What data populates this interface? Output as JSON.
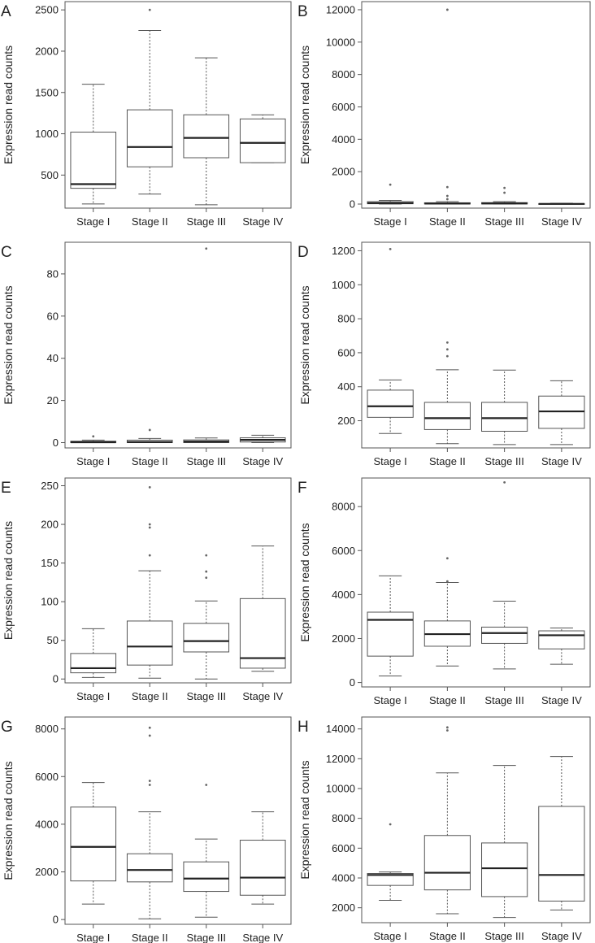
{
  "figure": {
    "panels": [
      {
        "letter": "A",
        "chart_data": {
          "type": "box",
          "categories": [
            "Stage I",
            "Stage II",
            "Stage III",
            "Stage IV"
          ],
          "ylabel": "Expression read counts",
          "yticks": [
            500,
            1000,
            1500,
            2000,
            2500
          ],
          "ylim": [
            100,
            2600
          ],
          "boxes": [
            {
              "min": 150,
              "q1": 340,
              "median": 390,
              "q3": 1020,
              "max": 1600,
              "outliers": []
            },
            {
              "min": 270,
              "q1": 600,
              "median": 840,
              "q3": 1290,
              "max": 2250,
              "outliers": [
                2500
              ]
            },
            {
              "min": 140,
              "q1": 710,
              "median": 950,
              "q3": 1230,
              "max": 1920,
              "outliers": []
            },
            {
              "min": 650,
              "q1": 650,
              "median": 890,
              "q3": 1180,
              "max": 1230,
              "outliers": []
            }
          ]
        }
      },
      {
        "letter": "B",
        "chart_data": {
          "type": "box",
          "categories": [
            "Stage I",
            "Stage II",
            "Stage III",
            "Stage IV"
          ],
          "ylabel": "Expression read counts",
          "yticks": [
            0,
            2000,
            4000,
            6000,
            8000,
            10000,
            12000
          ],
          "ylim": [
            -250,
            12500
          ],
          "boxes": [
            {
              "min": 0,
              "q1": 20,
              "median": 60,
              "q3": 150,
              "max": 230,
              "outliers": [
                1200
              ]
            },
            {
              "min": 0,
              "q1": 10,
              "median": 30,
              "q3": 80,
              "max": 150,
              "outliers": [
                300,
                500,
                1050,
                12000
              ]
            },
            {
              "min": 0,
              "q1": 10,
              "median": 40,
              "q3": 90,
              "max": 150,
              "outliers": [
                700,
                1000
              ]
            },
            {
              "min": 0,
              "q1": 5,
              "median": 10,
              "q3": 30,
              "max": 50,
              "outliers": []
            }
          ]
        }
      },
      {
        "letter": "C",
        "chart_data": {
          "type": "box",
          "categories": [
            "Stage I",
            "Stage II",
            "Stage III",
            "Stage IV"
          ],
          "ylabel": "Expression read counts",
          "yticks": [
            0,
            20,
            40,
            60,
            80
          ],
          "ylim": [
            -2.5,
            95
          ],
          "boxes": [
            {
              "min": 0,
              "q1": 0,
              "median": 0.2,
              "q3": 0.7,
              "max": 1.2,
              "outliers": [
                3
              ]
            },
            {
              "min": 0,
              "q1": 0,
              "median": 0.3,
              "q3": 1.2,
              "max": 2,
              "outliers": [
                6
              ]
            },
            {
              "min": 0,
              "q1": 0,
              "median": 0.5,
              "q3": 1.3,
              "max": 2.2,
              "outliers": [
                92
              ]
            },
            {
              "min": 0,
              "q1": 0.3,
              "median": 1.3,
              "q3": 2.3,
              "max": 3.5,
              "outliers": []
            }
          ]
        }
      },
      {
        "letter": "D",
        "chart_data": {
          "type": "box",
          "categories": [
            "Stage I",
            "Stage II",
            "Stage III",
            "Stage IV"
          ],
          "ylabel": "Expression read counts",
          "yticks": [
            200,
            400,
            600,
            800,
            1000,
            1200
          ],
          "ylim": [
            40,
            1250
          ],
          "boxes": [
            {
              "min": 125,
              "q1": 220,
              "median": 285,
              "q3": 380,
              "max": 440,
              "outliers": [
                1210
              ]
            },
            {
              "min": 65,
              "q1": 148,
              "median": 215,
              "q3": 308,
              "max": 500,
              "outliers": [
                580,
                620,
                660
              ]
            },
            {
              "min": 60,
              "q1": 138,
              "median": 215,
              "q3": 308,
              "max": 498,
              "outliers": []
            },
            {
              "min": 60,
              "q1": 155,
              "median": 255,
              "q3": 345,
              "max": 435,
              "outliers": []
            }
          ]
        }
      },
      {
        "letter": "E",
        "chart_data": {
          "type": "box",
          "categories": [
            "Stage I",
            "Stage II",
            "Stage III",
            "Stage IV"
          ],
          "ylabel": "Expression read counts",
          "yticks": [
            0,
            50,
            100,
            150,
            200,
            250
          ],
          "ylim": [
            -5,
            260
          ],
          "boxes": [
            {
              "min": 2,
              "q1": 8,
              "median": 14,
              "q3": 33,
              "max": 65,
              "outliers": []
            },
            {
              "min": 1,
              "q1": 18,
              "median": 42,
              "q3": 75,
              "max": 140,
              "outliers": [
                160,
                196,
                200,
                248
              ]
            },
            {
              "min": 0,
              "q1": 35,
              "median": 49,
              "q3": 72,
              "max": 101,
              "outliers": [
                131,
                139,
                160
              ]
            },
            {
              "min": 10,
              "q1": 14,
              "median": 27,
              "q3": 104,
              "max": 172,
              "outliers": []
            }
          ]
        }
      },
      {
        "letter": "F",
        "chart_data": {
          "type": "box",
          "categories": [
            "Stage I",
            "Stage II",
            "Stage III",
            "Stage IV"
          ],
          "ylabel": "Expression read counts",
          "yticks": [
            0,
            2000,
            4000,
            6000,
            8000
          ],
          "ylim": [
            -200,
            9300
          ],
          "boxes": [
            {
              "min": 300,
              "q1": 1200,
              "median": 2850,
              "q3": 3200,
              "max": 4850,
              "outliers": []
            },
            {
              "min": 750,
              "q1": 1650,
              "median": 2200,
              "q3": 2800,
              "max": 4550,
              "outliers": [
                4600,
                5650
              ]
            },
            {
              "min": 620,
              "q1": 1780,
              "median": 2250,
              "q3": 2520,
              "max": 3700,
              "outliers": [
                9100
              ]
            },
            {
              "min": 830,
              "q1": 1530,
              "median": 2150,
              "q3": 2350,
              "max": 2480,
              "outliers": []
            }
          ]
        }
      },
      {
        "letter": "G",
        "chart_data": {
          "type": "box",
          "categories": [
            "Stage I",
            "Stage II",
            "Stage III",
            "Stage IV"
          ],
          "ylabel": "Expression read counts",
          "yticks": [
            0,
            2000,
            4000,
            6000,
            8000
          ],
          "ylim": [
            -200,
            8500
          ],
          "boxes": [
            {
              "min": 650,
              "q1": 1620,
              "median": 3050,
              "q3": 4720,
              "max": 5750,
              "outliers": []
            },
            {
              "min": 30,
              "q1": 1580,
              "median": 2080,
              "q3": 2760,
              "max": 4520,
              "outliers": [
                5650,
                5820,
                7720,
                8050
              ]
            },
            {
              "min": 100,
              "q1": 1180,
              "median": 1720,
              "q3": 2420,
              "max": 3380,
              "outliers": [
                5650
              ]
            },
            {
              "min": 650,
              "q1": 1020,
              "median": 1760,
              "q3": 3330,
              "max": 4520,
              "outliers": []
            }
          ]
        }
      },
      {
        "letter": "H",
        "chart_data": {
          "type": "box",
          "categories": [
            "Stage I",
            "Stage II",
            "Stage III",
            "Stage IV"
          ],
          "ylabel": "Expression read counts",
          "yticks": [
            2000,
            4000,
            6000,
            8000,
            10000,
            12000,
            14000
          ],
          "ylim": [
            1000,
            14800
          ],
          "boxes": [
            {
              "min": 2500,
              "q1": 3500,
              "median": 4200,
              "q3": 4300,
              "max": 4400,
              "outliers": [
                7600
              ]
            },
            {
              "min": 1600,
              "q1": 3200,
              "median": 4350,
              "q3": 6850,
              "max": 11050,
              "outliers": [
                13900,
                14100
              ]
            },
            {
              "min": 1350,
              "q1": 2750,
              "median": 4650,
              "q3": 6350,
              "max": 11550,
              "outliers": []
            },
            {
              "min": 1850,
              "q1": 2450,
              "median": 4200,
              "q3": 8800,
              "max": 12150,
              "outliers": []
            }
          ]
        }
      }
    ]
  }
}
